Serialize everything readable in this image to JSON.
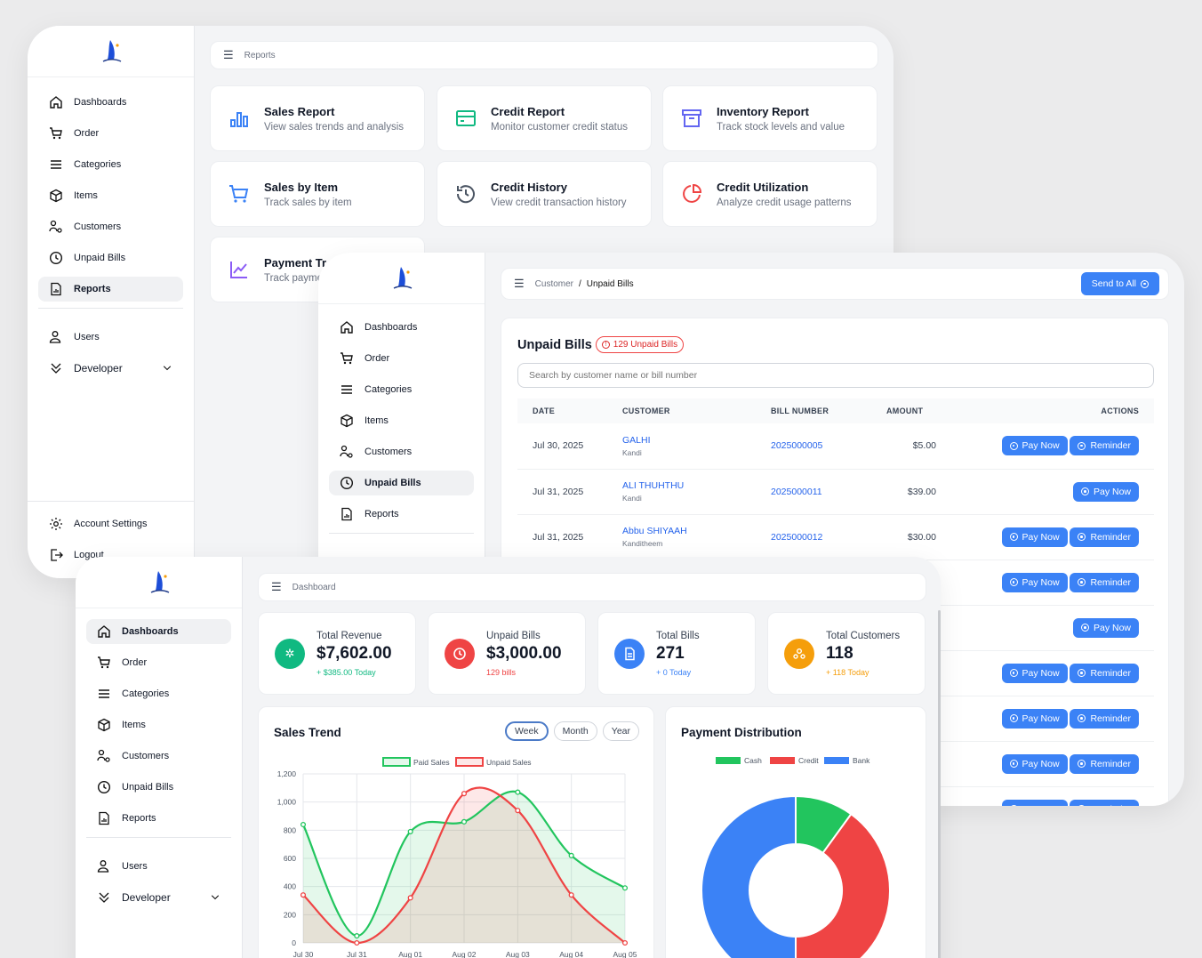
{
  "reports_window": {
    "sidebar": {
      "items": [
        {
          "label": "Dashboards",
          "icon": "home-icon"
        },
        {
          "label": "Order",
          "icon": "cart-icon"
        },
        {
          "label": "Categories",
          "icon": "list-icon"
        },
        {
          "label": "Items",
          "icon": "box-icon"
        },
        {
          "label": "Customers",
          "icon": "customers-icon"
        },
        {
          "label": "Unpaid Bills",
          "icon": "clock-icon"
        },
        {
          "label": "Reports",
          "icon": "report-icon",
          "active": true
        }
      ],
      "users_label": "Users",
      "developer_label": "Developer",
      "account_settings_label": "Account Settings",
      "logout_label": "Logout"
    },
    "breadcrumb": "Reports",
    "cards": [
      {
        "title": "Sales Report",
        "subtitle": "View sales trends and analysis",
        "icon": "bar-chart-icon",
        "color": "#3b82f6"
      },
      {
        "title": "Credit Report",
        "subtitle": "Monitor customer credit status",
        "icon": "credit-card-icon",
        "color": "#10b981"
      },
      {
        "title": "Inventory Report",
        "subtitle": "Track stock levels and value",
        "icon": "archive-icon",
        "color": "#6366f1"
      },
      {
        "title": "Sales by Item",
        "subtitle": "Track sales by item",
        "icon": "cart-icon",
        "color": "#3b82f6"
      },
      {
        "title": "Credit History",
        "subtitle": "View credit transaction history",
        "icon": "history-icon",
        "color": "#4b5563"
      },
      {
        "title": "Credit Utilization",
        "subtitle": "Analyze credit usage patterns",
        "icon": "pie-icon",
        "color": "#ef4444"
      },
      {
        "title": "Payment Tr",
        "subtitle": "Track payme",
        "icon": "trend-icon",
        "color": "#8b5cf6"
      }
    ]
  },
  "unpaid_window": {
    "sidebar": {
      "items": [
        {
          "label": "Dashboards"
        },
        {
          "label": "Order"
        },
        {
          "label": "Categories"
        },
        {
          "label": "Items"
        },
        {
          "label": "Customers"
        },
        {
          "label": "Unpaid Bills",
          "active": true
        },
        {
          "label": "Reports"
        }
      ]
    },
    "breadcrumb_parent": "Customer",
    "breadcrumb_sep": "/",
    "breadcrumb_current": "Unpaid Bills",
    "send_all_label": "Send to All",
    "title": "Unpaid Bills",
    "badge": "129 Unpaid Bills",
    "search_placeholder": "Search by customer name or bill number",
    "columns": [
      "DATE",
      "CUSTOMER",
      "BILL NUMBER",
      "AMOUNT",
      "ACTIONS"
    ],
    "rows": [
      {
        "date": "Jul 30, 2025",
        "customer": "GALHI",
        "location": "Kandi",
        "bill": "2025000005",
        "amount": "$5.00",
        "reminder": true
      },
      {
        "date": "Jul 31, 2025",
        "customer": "ALI THUHTHU",
        "location": "Kandi",
        "bill": "2025000011",
        "amount": "$39.00",
        "reminder": false
      },
      {
        "date": "Jul 31, 2025",
        "customer": "Abbu SHIYAAH",
        "location": "Kanditheem",
        "bill": "2025000012",
        "amount": "$30.00",
        "reminder": true
      }
    ],
    "hidden_rows_actions": [
      true,
      false,
      true,
      true,
      true,
      true
    ],
    "pay_now_label": "Pay Now",
    "reminder_label": "Reminder"
  },
  "dashboard_window": {
    "sidebar": {
      "items": [
        {
          "label": "Dashboards",
          "active": true
        },
        {
          "label": "Order"
        },
        {
          "label": "Categories"
        },
        {
          "label": "Items"
        },
        {
          "label": "Customers"
        },
        {
          "label": "Unpaid Bills"
        },
        {
          "label": "Reports"
        }
      ],
      "users_label": "Users",
      "developer_label": "Developer"
    },
    "breadcrumb": "Dashboard",
    "stats": [
      {
        "label": "Total Revenue",
        "value": "$7,602.00",
        "sub": "+ $385.00 Today",
        "color": "#10b981",
        "sub_color": "#10b981"
      },
      {
        "label": "Unpaid Bills",
        "value": "$3,000.00",
        "sub": "129 bills",
        "color": "#ef4444",
        "sub_color": "#ef4444"
      },
      {
        "label": "Total Bills",
        "value": "271",
        "sub": "+ 0 Today",
        "color": "#3b82f6",
        "sub_color": "#3b82f6"
      },
      {
        "label": "Total Customers",
        "value": "118",
        "sub": "+ 118 Today",
        "color": "#f59e0b",
        "sub_color": "#f59e0b"
      }
    ],
    "sales_trend": {
      "title": "Sales Trend",
      "periods": [
        "Week",
        "Month",
        "Year"
      ],
      "selected_period": "Week"
    },
    "payment_distribution": {
      "title": "Payment Distribution"
    }
  },
  "chart_data": [
    {
      "type": "line",
      "title": "Sales Trend",
      "categories": [
        "Jul 30",
        "Jul 31",
        "Aug 01",
        "Aug 02",
        "Aug 03",
        "Aug 04",
        "Aug 05"
      ],
      "series": [
        {
          "name": "Paid Sales",
          "values": [
            840,
            50,
            790,
            860,
            1070,
            620,
            390
          ],
          "color": "#22c55e"
        },
        {
          "name": "Unpaid Sales",
          "values": [
            340,
            0,
            320,
            1060,
            940,
            340,
            0
          ],
          "color": "#ef4444"
        }
      ],
      "ylim": [
        0,
        1200
      ],
      "yticks": [
        "0",
        "200",
        "400",
        "600",
        "800",
        "1,000",
        "1,200"
      ],
      "grid": true,
      "legend": "top"
    },
    {
      "type": "pie",
      "title": "Payment Distribution",
      "labels": [
        "Cash",
        "Credit",
        "Bank"
      ],
      "values": [
        10,
        40,
        50
      ],
      "colors": [
        "#22c55e",
        "#ef4444",
        "#3b82f6"
      ],
      "donut": true,
      "legend": "top"
    }
  ]
}
